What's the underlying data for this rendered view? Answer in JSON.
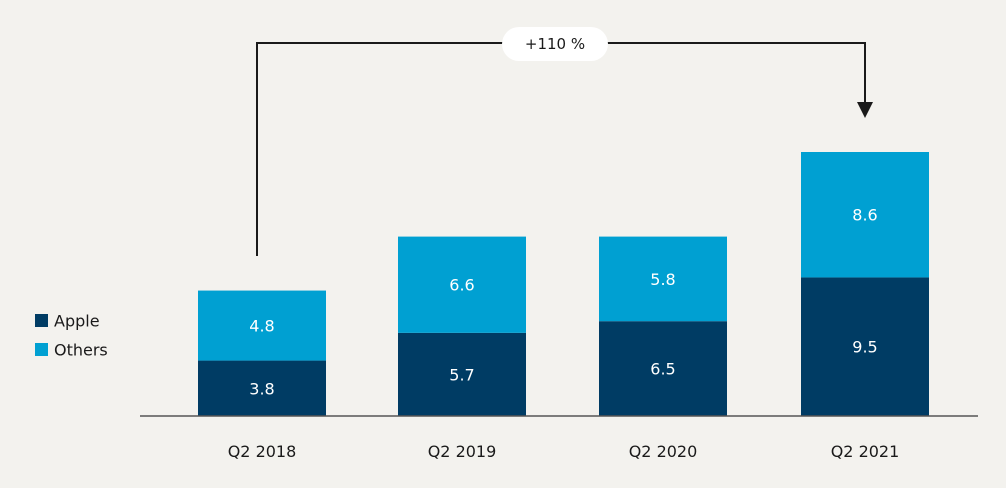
{
  "chart_data": {
    "type": "bar",
    "stacked": true,
    "categories": [
      "Q2 2018",
      "Q2 2019",
      "Q2 2020",
      "Q2 2021"
    ],
    "series": [
      {
        "name": "Apple",
        "values": [
          3.8,
          5.7,
          6.5,
          9.5
        ],
        "color": "#003c64"
      },
      {
        "name": "Others",
        "values": [
          4.8,
          6.6,
          5.8,
          8.6
        ],
        "color": "#00a0d2"
      }
    ],
    "title": "",
    "xlabel": "",
    "ylabel": "",
    "ylim": [
      0,
      18.1
    ],
    "grid": false,
    "legend": "left",
    "annotation": {
      "text": "+110 %",
      "from": "Q2 2018",
      "to": "Q2 2021"
    }
  },
  "colors": {
    "background": "#f3f2ee",
    "axis": "#555555",
    "bracket": "#1a1a1a",
    "label_box": "#ffffff"
  }
}
